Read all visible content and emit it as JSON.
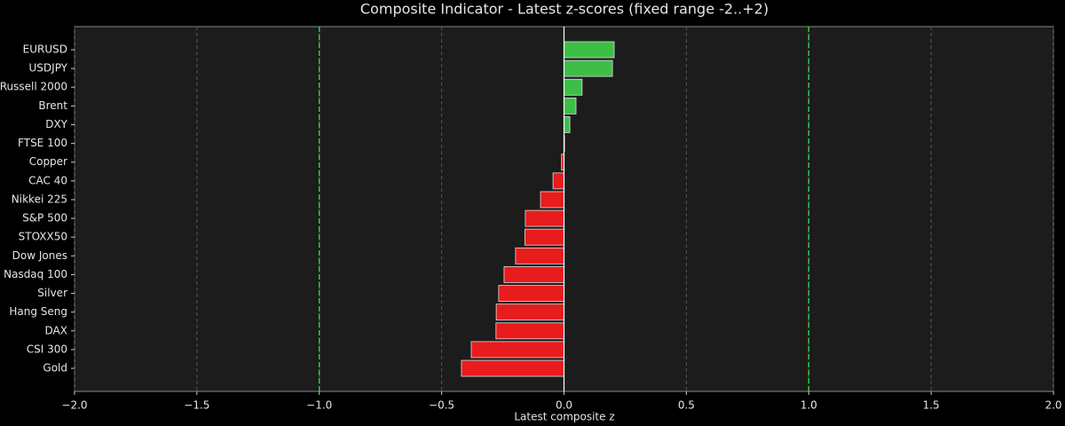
{
  "chart_data": {
    "type": "barh",
    "title": "Composite Indicator - Latest z-scores (fixed range -2..+2)",
    "x_label": "Latest composite z",
    "categories": [
      "EURUSD",
      "USDJPY",
      "Russell 2000",
      "Brent",
      "DXY",
      "FTSE 100",
      "Copper",
      "CAC 40",
      "Nikkei 225",
      "S&P 500",
      "STOXX50",
      "Dow Jones",
      "Nasdaq 100",
      "Silver",
      "Hang Seng",
      "DAX",
      "CSI 300",
      "Gold"
    ],
    "values": [
      0.205,
      0.198,
      0.074,
      0.049,
      0.024,
      0.002,
      -0.01,
      -0.045,
      -0.096,
      -0.158,
      -0.16,
      -0.198,
      -0.245,
      -0.267,
      -0.277,
      -0.278,
      -0.379,
      -0.419
    ],
    "positive_color": "#3dbf47",
    "negative_color": "#e81c1c",
    "xlim": [
      -2,
      2
    ],
    "xticks": [
      {
        "value": -2,
        "label": "−2.0"
      },
      {
        "value": -1.5,
        "label": "−1.5"
      },
      {
        "value": -1,
        "label": "−1.0"
      },
      {
        "value": -0.5,
        "label": "−0.5"
      },
      {
        "value": 0,
        "label": "0.0"
      },
      {
        "value": 0.5,
        "label": "0.5"
      },
      {
        "value": 1,
        "label": "1.0"
      },
      {
        "value": 1.5,
        "label": "1.5"
      },
      {
        "value": 2,
        "label": "2.0"
      }
    ],
    "reference_lines": [
      -1,
      1
    ],
    "reference_color": "#2ecc40",
    "grid": true
  }
}
